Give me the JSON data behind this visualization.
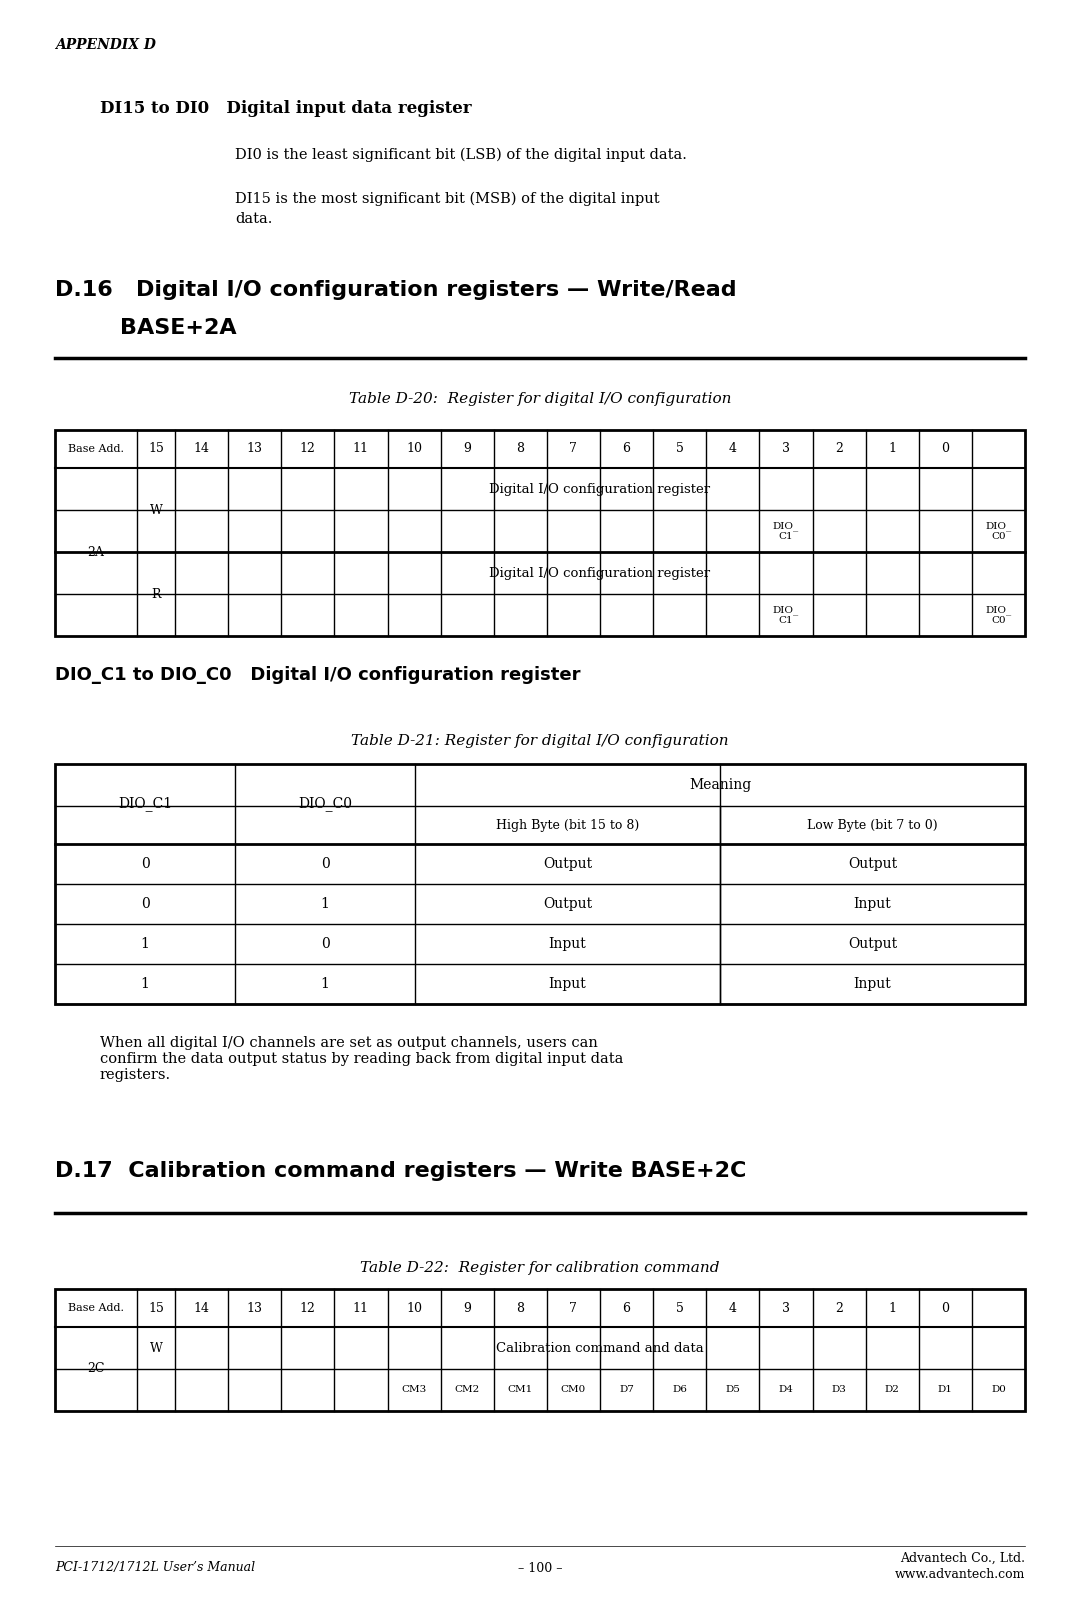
{
  "page_bg": "#ffffff",
  "appendix_label": "APPENDIX D",
  "section_di_title": "DI15 to DI0   Digital input data register",
  "di_text1": "DI0 is the least significant bit (LSB) of the digital input data.",
  "di_text2": "DI15 is the most significant bit (MSB) of the digital input\ndata.",
  "table20_title": "Table D-20:  Register for digital I/O configuration",
  "table20_headers": [
    "Base Add.",
    "15",
    "14",
    "13",
    "12",
    "11",
    "10",
    "9",
    "8",
    "7",
    "6",
    "5",
    "4",
    "3",
    "2",
    "1",
    "0"
  ],
  "table20_W_span": "Digital I/O configuration register",
  "table20_W_bit4": "DIO_\nC1",
  "table20_W_bit0": "DIO_\nC0",
  "table20_R_span": "Digital I/O configuration register",
  "table20_R_bit4": "DIO_\nC1",
  "table20_R_bit0": "DIO_\nC0",
  "section_dio_title": "DIO_C1 to DIO_C0   Digital I/O configuration register",
  "table21_title": "Table D-21: Register for digital I/O configuration",
  "table21_meaning_header": "Meaning",
  "table21_rows": [
    [
      "0",
      "0",
      "Output",
      "Output"
    ],
    [
      "0",
      "1",
      "Output",
      "Input"
    ],
    [
      "1",
      "0",
      "Input",
      "Output"
    ],
    [
      "1",
      "1",
      "Input",
      "Input"
    ]
  ],
  "when_text": "When all digital I/O channels are set as output channels, users can\nconfirm the data output status by reading back from digital input data\nregisters.",
  "table22_title": "Table D-22:  Register for calibration command",
  "table22_headers": [
    "Base Add.",
    "15",
    "14",
    "13",
    "12",
    "11",
    "10",
    "9",
    "8",
    "7",
    "6",
    "5",
    "4",
    "3",
    "2",
    "1",
    "0"
  ],
  "table22_W_span": "Calibration command and data",
  "table22_W_bits": [
    "CM3",
    "CM2",
    "CM1",
    "CM0",
    "D7",
    "D6",
    "D5",
    "D4",
    "D3",
    "D2",
    "D1",
    "D0"
  ],
  "footer_left": "PCI-1712/1712L User’s Manual",
  "footer_center": "– 100 –",
  "footer_right": "Advantech Co., Ltd.\nwww.advantech.com"
}
